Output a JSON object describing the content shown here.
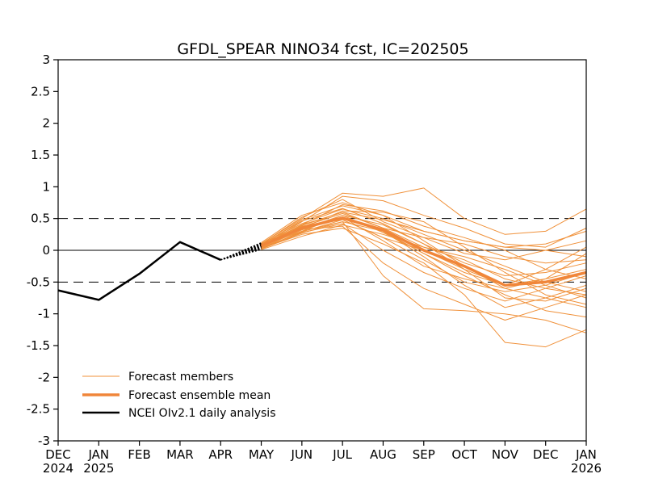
{
  "chart_data": {
    "type": "line",
    "title": "GFDL_SPEAR NINO34 fcst, IC=202505",
    "x_tick_labels": [
      {
        "month": "DEC",
        "year": "2024"
      },
      {
        "month": "JAN",
        "year": "2025"
      },
      {
        "month": "FEB",
        "year": ""
      },
      {
        "month": "MAR",
        "year": ""
      },
      {
        "month": "APR",
        "year": ""
      },
      {
        "month": "MAY",
        "year": ""
      },
      {
        "month": "JUN",
        "year": ""
      },
      {
        "month": "JUL",
        "year": ""
      },
      {
        "month": "AUG",
        "year": ""
      },
      {
        "month": "SEP",
        "year": ""
      },
      {
        "month": "OCT",
        "year": ""
      },
      {
        "month": "NOV",
        "year": ""
      },
      {
        "month": "DEC",
        "year": ""
      },
      {
        "month": "JAN",
        "year": "2026"
      }
    ],
    "y_ticks": [
      "3",
      "2.5",
      "2",
      "1.5",
      "1",
      "0.5",
      "0",
      "-0.5",
      "-1",
      "-1.5",
      "-2",
      "-2.5",
      "-3"
    ],
    "ylim": [
      -3,
      3
    ],
    "reference_lines": [
      0.5,
      0,
      -0.5
    ],
    "legend": {
      "placement": "bottom-left",
      "entries": [
        "Forecast members",
        "Forecast ensemble mean",
        "NCEI OIv2.1 daily analysis"
      ]
    },
    "colors": {
      "members": "#f0913a",
      "mean": "#f0863a",
      "analysis": "#000000"
    },
    "analysis": {
      "name": "NCEI OIv2.1 daily analysis",
      "x": [
        "DEC 2024",
        "JAN 2025",
        "FEB 2025",
        "MAR 2025",
        "APR 2025"
      ],
      "values": [
        -0.63,
        -0.78,
        -0.37,
        0.13,
        -0.15
      ]
    },
    "forecast_x": [
      "MAY 2025",
      "JUN 2025",
      "JUL 2025",
      "AUG 2025",
      "SEP 2025",
      "OCT 2025",
      "NOV 2025",
      "DEC 2025",
      "JAN 2026"
    ],
    "ensemble_mean": {
      "name": "Forecast ensemble mean",
      "values": [
        0.07,
        0.35,
        0.51,
        0.32,
        0.0,
        -0.25,
        -0.55,
        -0.5,
        -0.35
      ]
    },
    "members": [
      {
        "values": [
          0.1,
          0.5,
          0.9,
          0.85,
          0.98,
          0.5,
          0.25,
          0.3,
          0.65
        ]
      },
      {
        "values": [
          0.05,
          0.45,
          0.85,
          0.78,
          0.55,
          0.35,
          0.1,
          0.05,
          0.35
        ]
      },
      {
        "values": [
          0.12,
          0.55,
          0.75,
          0.55,
          0.3,
          0.15,
          0.05,
          0.0,
          -0.1
        ]
      },
      {
        "values": [
          0.08,
          0.4,
          0.6,
          0.35,
          0.2,
          0.1,
          -0.1,
          -0.2,
          -0.15
        ]
      },
      {
        "values": [
          0.02,
          0.3,
          0.55,
          0.4,
          0.1,
          -0.2,
          -0.4,
          -0.35,
          -0.2
        ]
      },
      {
        "values": [
          0.06,
          0.38,
          0.48,
          0.2,
          0.0,
          -0.3,
          -0.55,
          -0.45,
          -0.3
        ]
      },
      {
        "values": [
          0.1,
          0.42,
          0.65,
          0.5,
          0.25,
          0.0,
          -0.25,
          -0.5,
          -0.65
        ]
      },
      {
        "values": [
          0.04,
          0.28,
          0.42,
          0.0,
          -0.35,
          -0.6,
          -0.8,
          -0.6,
          -0.4
        ]
      },
      {
        "values": [
          0.09,
          0.33,
          0.38,
          -0.2,
          -0.6,
          -0.85,
          -1.1,
          -0.9,
          -0.7
        ]
      },
      {
        "values": [
          0.07,
          0.3,
          0.45,
          -0.4,
          -0.92,
          -0.95,
          -1.0,
          -1.1,
          -1.3
        ]
      },
      {
        "values": [
          0.03,
          0.25,
          0.35,
          0.1,
          -0.2,
          -0.7,
          -1.45,
          -1.52,
          -1.25
        ]
      },
      {
        "values": [
          0.11,
          0.36,
          0.5,
          0.3,
          -0.05,
          -0.4,
          -0.7,
          -0.95,
          -1.05
        ]
      },
      {
        "values": [
          0.05,
          0.35,
          0.62,
          0.6,
          0.45,
          0.05,
          -0.35,
          -0.7,
          -0.85
        ]
      },
      {
        "values": [
          0.08,
          0.48,
          0.7,
          0.55,
          0.15,
          -0.25,
          -0.6,
          -0.75,
          -0.55
        ]
      },
      {
        "values": [
          0.06,
          0.37,
          0.58,
          0.35,
          0.05,
          -0.15,
          -0.45,
          -0.6,
          -0.7
        ]
      },
      {
        "values": [
          0.01,
          0.22,
          0.4,
          0.25,
          0.05,
          -0.1,
          -0.3,
          -0.55,
          -0.35
        ]
      },
      {
        "values": [
          0.09,
          0.46,
          0.66,
          0.42,
          0.1,
          -0.3,
          -0.75,
          -0.8,
          -0.6
        ]
      },
      {
        "values": [
          0.04,
          0.32,
          0.52,
          0.15,
          -0.25,
          -0.45,
          -0.6,
          -0.45,
          -0.05
        ]
      },
      {
        "values": [
          0.07,
          0.4,
          0.72,
          0.62,
          0.38,
          0.2,
          0.0,
          -0.3,
          -0.45
        ]
      },
      {
        "values": [
          0.1,
          0.52,
          0.8,
          0.45,
          0.2,
          -0.05,
          -0.15,
          0.0,
          0.15
        ]
      },
      {
        "values": [
          0.02,
          0.27,
          0.45,
          0.3,
          -0.1,
          -0.55,
          -0.9,
          -0.75,
          -0.9
        ]
      },
      {
        "values": [
          0.06,
          0.34,
          0.55,
          0.28,
          -0.05,
          -0.35,
          -0.55,
          -0.3,
          0.05
        ]
      },
      {
        "values": [
          0.08,
          0.39,
          0.6,
          0.48,
          0.3,
          0.15,
          0.05,
          0.1,
          0.3
        ]
      },
      {
        "values": [
          0.03,
          0.29,
          0.48,
          0.2,
          -0.15,
          -0.5,
          -0.65,
          -0.55,
          -0.75
        ]
      }
    ]
  }
}
